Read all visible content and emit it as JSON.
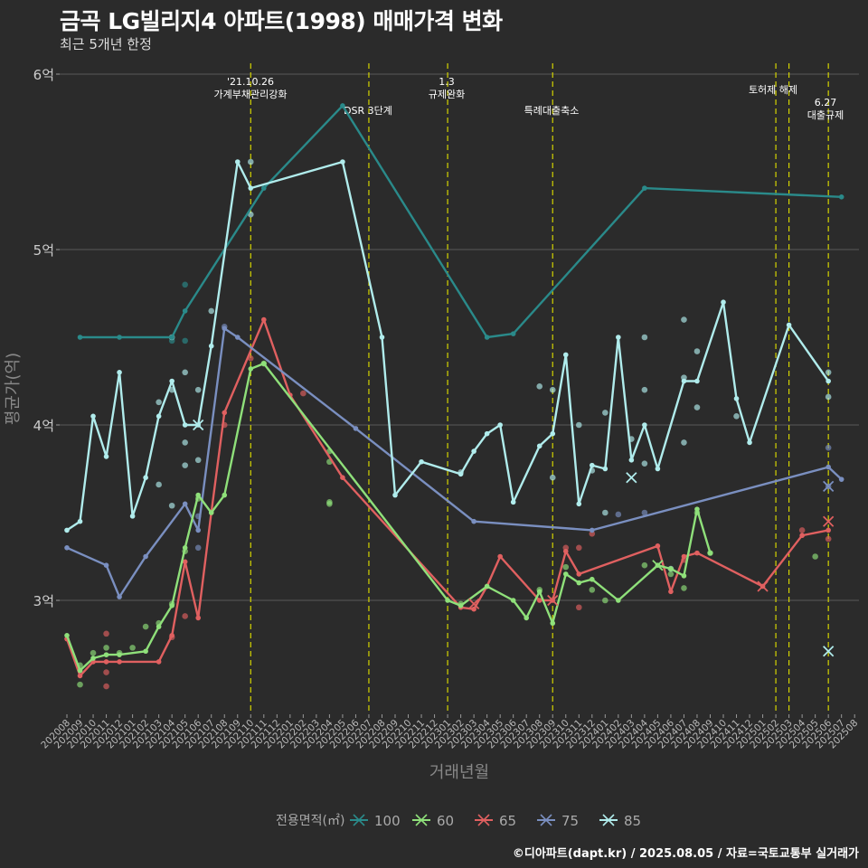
{
  "header": {
    "title": "금곡 LG빌리지4 아파트(1998) 매매가격 변화",
    "subtitle": "최근 5개년 한정"
  },
  "footer": {
    "credit": "©디아파트(dapt.kr) / 2025.08.05 / 자료=국토교통부 실거래가"
  },
  "colors": {
    "background": "#2b2b2b",
    "grid": "#5a5a5a",
    "event_line": "#d4d400",
    "100": "#2a8a8a",
    "60": "#8fe07a",
    "65": "#e06060",
    "75": "#7a8fc0",
    "85": "#b0ecec"
  },
  "chart_data": {
    "type": "line",
    "xlabel": "거래년월",
    "ylabel": "평균가(억)",
    "ylim": [
      2.4,
      6.0
    ],
    "yticks": [
      3,
      4,
      5,
      6
    ],
    "ytick_labels": [
      "3억",
      "4억",
      "5억",
      "6억"
    ],
    "categories": [
      "202008",
      "202009",
      "202010",
      "202011",
      "202012",
      "202101",
      "202102",
      "202103",
      "202104",
      "202105",
      "202106",
      "202107",
      "202108",
      "202109",
      "202110",
      "202111",
      "202112",
      "202201",
      "202202",
      "202203",
      "202204",
      "202205",
      "202206",
      "202207",
      "202208",
      "202209",
      "202210",
      "202211",
      "202212",
      "202301",
      "202302",
      "202303",
      "202304",
      "202305",
      "202306",
      "202307",
      "202308",
      "202309",
      "202310",
      "202311",
      "202312",
      "202401",
      "202402",
      "202403",
      "202404",
      "202405",
      "202406",
      "202407",
      "202408",
      "202409",
      "202410",
      "202411",
      "202412",
      "202501",
      "202502",
      "202503",
      "202504",
      "202505",
      "202506",
      "202507",
      "202508"
    ],
    "grid": true,
    "legend": {
      "title": "전용면적(㎡)",
      "position": "bottom",
      "entries": [
        "100",
        "60",
        "65",
        "75",
        "85"
      ]
    },
    "events": [
      {
        "x": "202110",
        "label_lines": [
          "'21.10.26",
          "가계부채관리강화"
        ]
      },
      {
        "x": "202207",
        "label_lines": [
          "DSR 3단계"
        ]
      },
      {
        "x": "202301",
        "label_lines": [
          "1.3",
          "규제완화"
        ]
      },
      {
        "x": "202309",
        "label_lines": [
          "특례대출축소"
        ]
      },
      {
        "x": "202502",
        "label_lines": []
      },
      {
        "x": "202503",
        "label_lines": [
          "토허제 해제"
        ]
      },
      {
        "x": "202506",
        "label_lines": [
          "6.27",
          "대출규제"
        ]
      }
    ],
    "series": [
      {
        "name": "100",
        "points": [
          [
            "202009",
            4.5
          ],
          [
            "202012",
            4.5
          ],
          [
            "202104",
            4.5
          ],
          [
            "202105",
            4.65
          ],
          [
            "202111",
            5.35
          ],
          [
            "202205",
            5.82
          ],
          [
            "202304",
            4.5
          ],
          [
            "202306",
            4.52
          ],
          [
            "202404",
            5.35
          ],
          [
            "202507",
            5.3
          ]
        ]
      },
      {
        "name": "60",
        "points": [
          [
            "202008",
            2.8
          ],
          [
            "202009",
            2.6
          ],
          [
            "202010",
            2.67
          ],
          [
            "202011",
            2.69
          ],
          [
            "202012",
            2.69
          ],
          [
            "202102",
            2.71
          ],
          [
            "202103",
            2.85
          ],
          [
            "202104",
            2.97
          ],
          [
            "202105",
            3.3
          ],
          [
            "202106",
            3.6
          ],
          [
            "202107",
            3.5
          ],
          [
            "202108",
            3.6
          ],
          [
            "202110",
            4.32
          ],
          [
            "202111",
            4.35
          ],
          [
            "202301",
            3.0
          ],
          [
            "202302",
            2.97
          ],
          [
            "202304",
            3.08
          ],
          [
            "202306",
            3.0
          ],
          [
            "202307",
            2.9
          ],
          [
            "202308",
            3.05
          ],
          [
            "202309",
            2.87
          ],
          [
            "202310",
            3.15
          ],
          [
            "202311",
            3.1
          ],
          [
            "202312",
            3.12
          ],
          [
            "202402",
            3.0
          ],
          [
            "202405",
            3.2
          ],
          [
            "202406",
            3.18
          ],
          [
            "202407",
            3.14
          ],
          [
            "202408",
            3.52
          ],
          [
            "202409",
            3.27
          ]
        ]
      },
      {
        "name": "65",
        "points": [
          [
            "202008",
            2.78
          ],
          [
            "202009",
            2.57
          ],
          [
            "202010",
            2.65
          ],
          [
            "202011",
            2.65
          ],
          [
            "202012",
            2.65
          ],
          [
            "202103",
            2.65
          ],
          [
            "202104",
            2.8
          ],
          [
            "202105",
            3.22
          ],
          [
            "202106",
            2.9
          ],
          [
            "202107",
            3.5
          ],
          [
            "202108",
            4.07
          ],
          [
            "202111",
            4.6
          ],
          [
            "202201",
            4.17
          ],
          [
            "202205",
            3.7
          ],
          [
            "202302",
            2.96
          ],
          [
            "202303",
            2.95
          ],
          [
            "202304",
            3.08
          ],
          [
            "202305",
            3.25
          ],
          [
            "202308",
            3.0
          ],
          [
            "202309",
            3.0
          ],
          [
            "202310",
            3.28
          ],
          [
            "202311",
            3.15
          ],
          [
            "202405",
            3.31
          ],
          [
            "202406",
            3.05
          ],
          [
            "202407",
            3.25
          ],
          [
            "202408",
            3.27
          ],
          [
            "202501",
            3.08
          ],
          [
            "202504",
            3.37
          ],
          [
            "202506",
            3.4
          ]
        ]
      },
      {
        "name": "75",
        "points": [
          [
            "202008",
            3.3
          ],
          [
            "202011",
            3.2
          ],
          [
            "202012",
            3.02
          ],
          [
            "202102",
            3.25
          ],
          [
            "202105",
            3.55
          ],
          [
            "202106",
            3.4
          ],
          [
            "202108",
            4.55
          ],
          [
            "202109",
            4.5
          ],
          [
            "202206",
            3.98
          ],
          [
            "202303",
            3.45
          ],
          [
            "202312",
            3.4
          ],
          [
            "202506",
            3.76
          ],
          [
            "202507",
            3.69
          ]
        ]
      },
      {
        "name": "85",
        "points": [
          [
            "202008",
            3.4
          ],
          [
            "202009",
            3.45
          ],
          [
            "202010",
            4.05
          ],
          [
            "202011",
            3.82
          ],
          [
            "202012",
            4.3
          ],
          [
            "202101",
            3.48
          ],
          [
            "202102",
            3.7
          ],
          [
            "202103",
            4.05
          ],
          [
            "202104",
            4.25
          ],
          [
            "202105",
            4.0
          ],
          [
            "202106",
            4.0
          ],
          [
            "202107",
            4.45
          ],
          [
            "202109",
            5.5
          ],
          [
            "202110",
            5.35
          ],
          [
            "202205",
            5.5
          ],
          [
            "202208",
            4.5
          ],
          [
            "202209",
            3.6
          ],
          [
            "202211",
            3.79
          ],
          [
            "202302",
            3.72
          ],
          [
            "202303",
            3.85
          ],
          [
            "202304",
            3.95
          ],
          [
            "202305",
            4.0
          ],
          [
            "202306",
            3.56
          ],
          [
            "202308",
            3.88
          ],
          [
            "202309",
            3.95
          ],
          [
            "202310",
            4.4
          ],
          [
            "202311",
            3.55
          ],
          [
            "202312",
            3.77
          ],
          [
            "202401",
            3.75
          ],
          [
            "202402",
            4.5
          ],
          [
            "202403",
            3.8
          ],
          [
            "202404",
            4.0
          ],
          [
            "202405",
            3.75
          ],
          [
            "202407",
            4.25
          ],
          [
            "202408",
            4.25
          ],
          [
            "202410",
            4.7
          ],
          [
            "202411",
            4.15
          ],
          [
            "202412",
            3.9
          ],
          [
            "202503",
            4.57
          ],
          [
            "202506",
            4.25
          ]
        ]
      }
    ],
    "scatter": [
      {
        "name": "100",
        "points": [
          [
            "202104",
            4.48
          ],
          [
            "202105",
            4.8
          ],
          [
            "202105",
            4.48
          ]
        ]
      },
      {
        "name": "60",
        "points": [
          [
            "202009",
            2.52
          ],
          [
            "202009",
            2.63
          ],
          [
            "202010",
            2.7
          ],
          [
            "202011",
            2.73
          ],
          [
            "202012",
            2.7
          ],
          [
            "202101",
            2.73
          ],
          [
            "202102",
            2.85
          ],
          [
            "202103",
            2.87
          ],
          [
            "202104",
            2.98
          ],
          [
            "202105",
            3.28
          ],
          [
            "202106",
            3.58
          ],
          [
            "202111",
            4.35
          ],
          [
            "202204",
            3.85
          ],
          [
            "202204",
            3.79
          ],
          [
            "202204",
            3.56
          ],
          [
            "202204",
            3.55
          ],
          [
            "202302",
            2.98
          ],
          [
            "202308",
            3.06
          ],
          [
            "202310",
            3.19
          ],
          [
            "202312",
            3.06
          ],
          [
            "202401",
            3.0
          ],
          [
            "202404",
            3.2
          ],
          [
            "202406",
            3.15
          ],
          [
            "202407",
            3.07
          ],
          [
            "202408",
            3.5
          ],
          [
            "202409",
            3.27
          ],
          [
            "202505",
            3.25
          ]
        ]
      },
      {
        "name": "65",
        "points": [
          [
            "202011",
            2.59
          ],
          [
            "202011",
            2.81
          ],
          [
            "202011",
            2.51
          ],
          [
            "202104",
            2.79
          ],
          [
            "202105",
            2.91
          ],
          [
            "202108",
            4.0
          ],
          [
            "202110",
            4.38
          ],
          [
            "202202",
            4.18
          ],
          [
            "202310",
            3.3
          ],
          [
            "202311",
            2.96
          ],
          [
            "202311",
            3.3
          ],
          [
            "202312",
            3.38
          ],
          [
            "202407",
            3.23
          ],
          [
            "202504",
            3.4
          ],
          [
            "202506",
            3.35
          ]
        ]
      },
      {
        "name": "75",
        "points": [
          [
            "202106",
            3.48
          ],
          [
            "202106",
            3.3
          ],
          [
            "202108",
            4.56
          ],
          [
            "202402",
            3.49
          ],
          [
            "202404",
            3.5
          ],
          [
            "202506",
            3.87
          ],
          [
            "202506",
            3.65
          ]
        ]
      },
      {
        "name": "85",
        "points": [
          [
            "202103",
            4.13
          ],
          [
            "202103",
            3.66
          ],
          [
            "202104",
            4.5
          ],
          [
            "202104",
            4.2
          ],
          [
            "202104",
            3.54
          ],
          [
            "202105",
            4.3
          ],
          [
            "202105",
            3.9
          ],
          [
            "202105",
            3.77
          ],
          [
            "202106",
            4.2
          ],
          [
            "202106",
            3.8
          ],
          [
            "202107",
            4.65
          ],
          [
            "202110",
            5.5
          ],
          [
            "202110",
            5.2
          ],
          [
            "202302",
            3.73
          ],
          [
            "202308",
            4.22
          ],
          [
            "202309",
            4.2
          ],
          [
            "202309",
            3.7
          ],
          [
            "202311",
            4.0
          ],
          [
            "202312",
            3.74
          ],
          [
            "202401",
            4.07
          ],
          [
            "202401",
            3.5
          ],
          [
            "202403",
            3.92
          ],
          [
            "202404",
            4.5
          ],
          [
            "202404",
            4.2
          ],
          [
            "202404",
            3.78
          ],
          [
            "202406",
            3.18
          ],
          [
            "202407",
            4.6
          ],
          [
            "202407",
            4.27
          ],
          [
            "202407",
            3.9
          ],
          [
            "202408",
            4.42
          ],
          [
            "202408",
            4.1
          ],
          [
            "202411",
            4.05
          ],
          [
            "202506",
            4.3
          ],
          [
            "202506",
            4.16
          ]
        ]
      }
    ],
    "markers_x": [
      {
        "name": "85",
        "points": [
          [
            "202106",
            4.0
          ],
          [
            "202403",
            3.7
          ],
          [
            "202506",
            2.71
          ]
        ]
      },
      {
        "name": "75",
        "points": [
          [
            "202506",
            3.65
          ]
        ]
      },
      {
        "name": "65",
        "points": [
          [
            "202303",
            2.98
          ],
          [
            "202309",
            3.0
          ],
          [
            "202501",
            3.08
          ],
          [
            "202506",
            3.45
          ]
        ]
      },
      {
        "name": "60",
        "points": [
          [
            "202405",
            3.2
          ]
        ]
      }
    ]
  }
}
